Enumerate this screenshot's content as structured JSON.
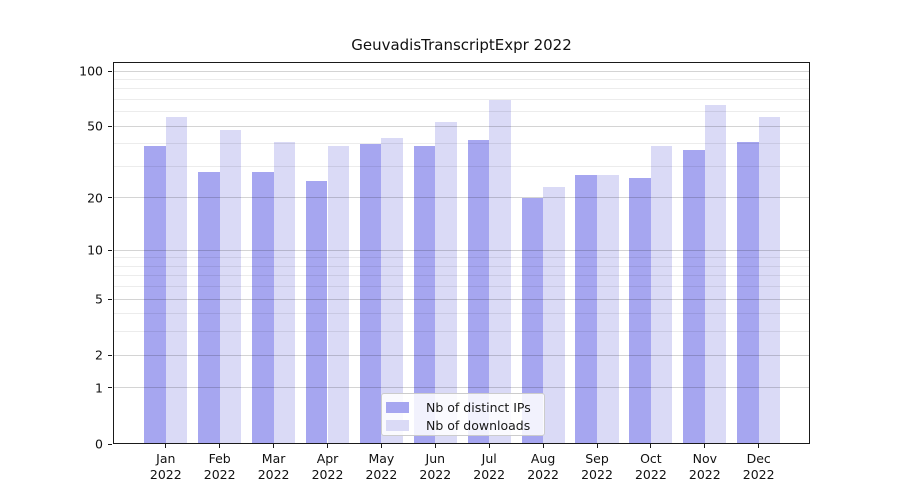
{
  "chart_data": {
    "type": "bar",
    "title": "GeuvadisTranscriptExpr 2022",
    "categories": [
      "Jan 2022",
      "Feb 2022",
      "Mar 2022",
      "Apr 2022",
      "May 2022",
      "Jun 2022",
      "Jul 2022",
      "Aug 2022",
      "Sep 2022",
      "Oct 2022",
      "Nov 2022",
      "Dec 2022"
    ],
    "series": [
      {
        "name": "Nb of distinct IPs",
        "color": "#a6a6f0",
        "values": [
          39,
          28,
          28,
          25,
          40,
          39,
          42,
          20,
          27,
          26,
          37,
          41
        ]
      },
      {
        "name": "Nb of downloads",
        "color": "#dadaf6",
        "values": [
          56,
          48,
          41,
          39,
          43,
          53,
          70,
          23,
          27,
          39,
          65,
          56
        ]
      }
    ],
    "yscale": "log1p",
    "ylim": [
      0,
      112
    ],
    "yticks": [
      0,
      1,
      2,
      5,
      10,
      20,
      50,
      100
    ],
    "yticks_minor": [
      3,
      4,
      6,
      7,
      8,
      9,
      30,
      40,
      60,
      70,
      80,
      90
    ],
    "grid": "horizontal",
    "legend_position": "lower center",
    "background_color": "#ffffff"
  }
}
